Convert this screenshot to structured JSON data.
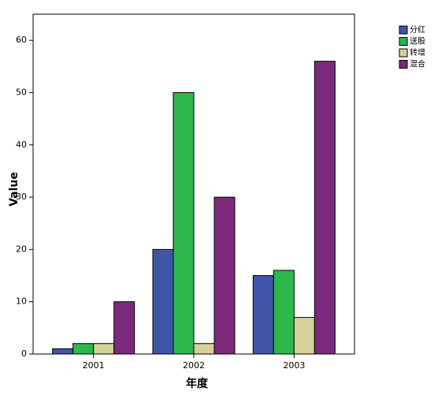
{
  "chart_data": {
    "type": "bar",
    "x_label": "年度",
    "y_label": "Value",
    "categories": [
      "2001",
      "2002",
      "2003"
    ],
    "series": [
      {
        "name": "分红",
        "color": "#3e55a8",
        "values": [
          1,
          20,
          15
        ]
      },
      {
        "name": "送股",
        "color": "#2db84b",
        "values": [
          2,
          50,
          16
        ]
      },
      {
        "name": "转增",
        "color": "#d6d09a",
        "values": [
          2,
          2,
          7
        ]
      },
      {
        "name": "混合",
        "color": "#7b2a7b",
        "values": [
          10,
          30,
          56
        ]
      }
    ],
    "ylim": [
      0,
      65
    ],
    "yticks": [
      0,
      10,
      20,
      30,
      40,
      50,
      60
    ],
    "grid": false,
    "legend": "top-right"
  }
}
